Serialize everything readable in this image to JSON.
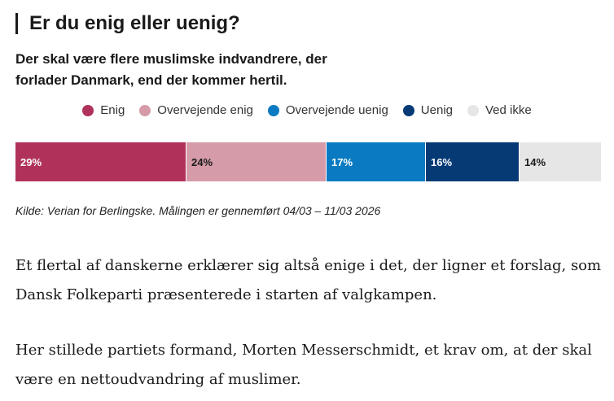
{
  "header": {
    "title": "Er du enig eller uenig?"
  },
  "question": "Der skal være flere muslimske indvandrere, der forlader Danmark, end der kommer hertil.",
  "legend": [
    {
      "label": "Enig",
      "color": "#b0325a"
    },
    {
      "label": "Overvejende enig",
      "color": "#d59ba9"
    },
    {
      "label": "Overvejende uenig",
      "color": "#0a7bc2"
    },
    {
      "label": "Uenig",
      "color": "#063a75"
    },
    {
      "label": "Ved ikke",
      "color": "#e6e6e6"
    }
  ],
  "chart_data": {
    "type": "bar",
    "orientation": "horizontal-stacked",
    "title": "Er du enig eller uenig?",
    "subtitle": "Der skal være flere muslimske indvandrere, der forlader Danmark, end der kommer hertil.",
    "series": [
      {
        "name": "Enig",
        "value": 29,
        "label": "29%",
        "color": "#b0325a",
        "text_color": "#ffffff"
      },
      {
        "name": "Overvejende enig",
        "value": 24,
        "label": "24%",
        "color": "#d59ba9",
        "text_color": "#1a1a1a"
      },
      {
        "name": "Overvejende uenig",
        "value": 17,
        "label": "17%",
        "color": "#0a7bc2",
        "text_color": "#ffffff"
      },
      {
        "name": "Uenig",
        "value": 16,
        "label": "16%",
        "color": "#063a75",
        "text_color": "#ffffff"
      },
      {
        "name": "Ved ikke",
        "value": 14,
        "label": "14%",
        "color": "#e6e6e6",
        "text_color": "#1a1a1a"
      }
    ],
    "legend_position": "top-center",
    "grid": false
  },
  "source": "Kilde: Verian for Berlingske. Målingen er gennemført 04/03 – 11/03 2026",
  "article": {
    "paragraphs": [
      "Et flertal af danskerne erklærer sig altså enige i det, der ligner et forslag, som Dansk Folkeparti præsenterede i starten af valgkampen.",
      "Her stillede partiets formand, Morten Messerschmidt, et krav om, at der skal være en nettoudvandring af muslimer."
    ]
  }
}
